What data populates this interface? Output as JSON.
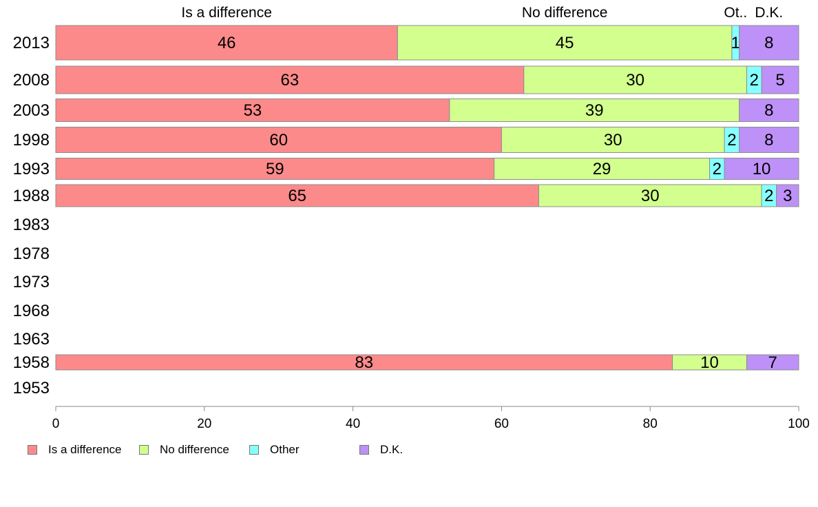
{
  "chart_data": {
    "type": "bar",
    "orientation": "horizontal",
    "stacked": true,
    "categories": [
      "2013",
      "2008",
      "2003",
      "1998",
      "1993",
      "1988",
      "1983",
      "1978",
      "1973",
      "1968",
      "1963",
      "1958",
      "1953"
    ],
    "series": [
      {
        "name": "Is a difference",
        "color": "#fd8a8a",
        "values": [
          46,
          63,
          53,
          60,
          59,
          65,
          null,
          null,
          null,
          null,
          null,
          83,
          null
        ]
      },
      {
        "name": "No difference",
        "color": "#d2ff8e",
        "values": [
          45,
          30,
          39,
          30,
          29,
          30,
          null,
          null,
          null,
          null,
          null,
          10,
          null
        ]
      },
      {
        "name": "Other",
        "color": "#86ffff",
        "values": [
          1,
          2,
          null,
          2,
          2,
          2,
          null,
          null,
          null,
          null,
          null,
          null,
          null
        ]
      },
      {
        "name": "D.K.",
        "color": "#bd91f7",
        "values": [
          8,
          5,
          8,
          8,
          10,
          3,
          null,
          null,
          null,
          null,
          null,
          7,
          null
        ]
      }
    ],
    "top_labels": [
      "Is a difference",
      "No difference",
      "Ot..",
      "D.K."
    ],
    "xlim": [
      0,
      100
    ],
    "xticks": [
      0,
      20,
      40,
      60,
      80,
      100
    ],
    "xlabel": "",
    "ylabel": "",
    "title": "",
    "grid": false,
    "legend_position": "bottom-left"
  }
}
